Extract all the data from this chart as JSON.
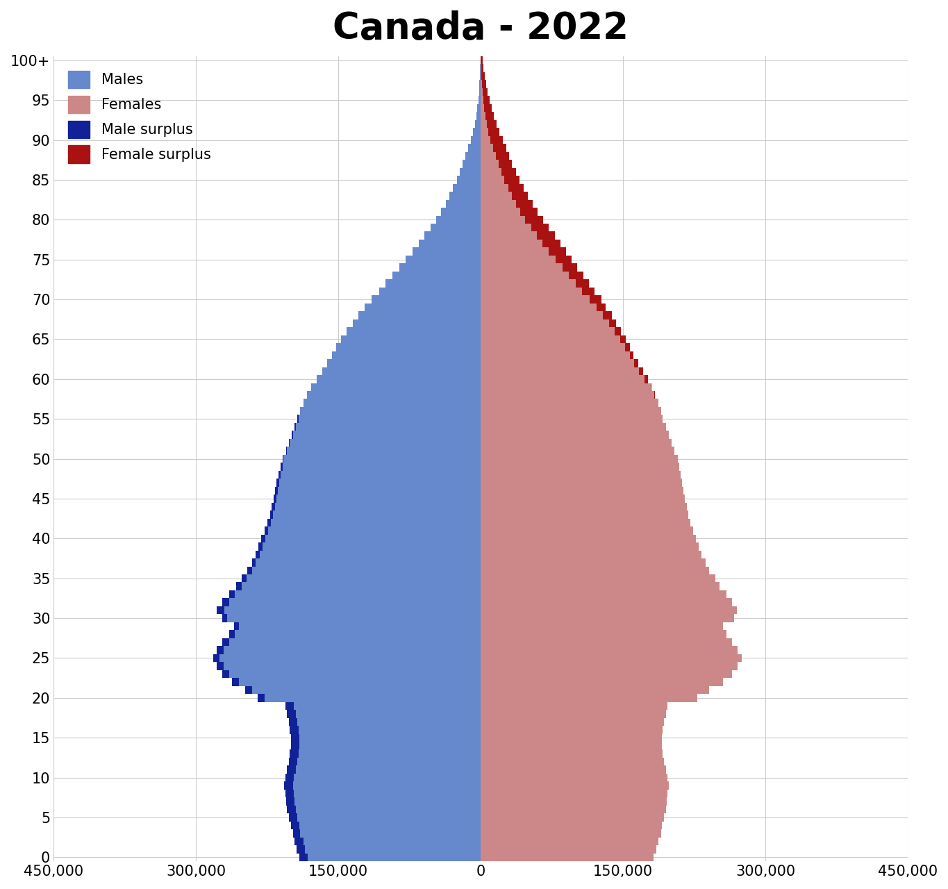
{
  "title": "Canada - 2022",
  "title_fontsize": 38,
  "title_fontweight": "bold",
  "male_color": "#6688CC",
  "female_color": "#CC8888",
  "male_surplus_color": "#112299",
  "female_surplus_color": "#AA1111",
  "background_color": "#FFFFFF",
  "grid_color": "#CCCCCC",
  "xlim": 450000,
  "xticks": [
    -450000,
    -300000,
    -150000,
    0,
    150000,
    300000,
    450000
  ],
  "xticklabels": [
    "450,000",
    "300,000",
    "150,000",
    "0",
    "150,000",
    "300,000",
    "450,000"
  ],
  "ages": [
    0,
    1,
    2,
    3,
    4,
    5,
    6,
    7,
    8,
    9,
    10,
    11,
    12,
    13,
    14,
    15,
    16,
    17,
    18,
    19,
    20,
    21,
    22,
    23,
    24,
    25,
    26,
    27,
    28,
    29,
    30,
    31,
    32,
    33,
    34,
    35,
    36,
    37,
    38,
    39,
    40,
    41,
    42,
    43,
    44,
    45,
    46,
    47,
    48,
    49,
    50,
    51,
    52,
    53,
    54,
    55,
    56,
    57,
    58,
    59,
    60,
    61,
    62,
    63,
    64,
    65,
    66,
    67,
    68,
    69,
    70,
    71,
    72,
    73,
    74,
    75,
    76,
    77,
    78,
    79,
    80,
    81,
    82,
    83,
    84,
    85,
    86,
    87,
    88,
    89,
    90,
    91,
    92,
    93,
    94,
    95,
    96,
    97,
    98,
    99,
    100
  ],
  "males": [
    191000,
    194000,
    196000,
    198000,
    200000,
    202000,
    204000,
    205000,
    206000,
    207000,
    206000,
    204000,
    202000,
    201000,
    200000,
    200000,
    201000,
    202000,
    204000,
    206000,
    235000,
    248000,
    262000,
    272000,
    278000,
    282000,
    278000,
    272000,
    265000,
    260000,
    272000,
    278000,
    272000,
    265000,
    258000,
    252000,
    246000,
    241000,
    237000,
    234000,
    231000,
    228000,
    225000,
    222000,
    220000,
    218000,
    217000,
    215000,
    213000,
    211000,
    209000,
    205000,
    202000,
    199000,
    196000,
    193000,
    190000,
    187000,
    183000,
    179000,
    173000,
    167000,
    162000,
    157000,
    152000,
    147000,
    141000,
    135000,
    129000,
    122000,
    115000,
    107000,
    100000,
    93000,
    86000,
    79000,
    72000,
    65000,
    59000,
    53000,
    47000,
    42000,
    37000,
    33000,
    29000,
    25000,
    22000,
    19000,
    16000,
    13000,
    10000,
    8000,
    6200,
    4700,
    3500,
    2500,
    1800,
    1200,
    780,
    470,
    250
  ],
  "females": [
    182000,
    185000,
    187000,
    190000,
    191000,
    193000,
    195000,
    196000,
    197000,
    198000,
    197000,
    195000,
    193000,
    192000,
    191000,
    191000,
    192000,
    193000,
    195000,
    197000,
    228000,
    241000,
    255000,
    265000,
    271000,
    275000,
    271000,
    265000,
    259000,
    255000,
    267000,
    270000,
    265000,
    259000,
    252000,
    247000,
    241000,
    237000,
    233000,
    230000,
    227000,
    224000,
    221000,
    219000,
    217000,
    215000,
    214000,
    212000,
    211000,
    209000,
    208000,
    204000,
    201000,
    198000,
    195000,
    192000,
    190000,
    187000,
    184000,
    180000,
    176000,
    171000,
    166000,
    161000,
    157000,
    153000,
    148000,
    143000,
    138000,
    132000,
    127000,
    120000,
    114000,
    108000,
    102000,
    96000,
    90000,
    84000,
    78000,
    72000,
    66000,
    60000,
    55000,
    50000,
    45000,
    41000,
    37000,
    33000,
    30000,
    27000,
    23000,
    20000,
    17000,
    14000,
    11500,
    9200,
    7200,
    5500,
    4100,
    3000,
    2100
  ]
}
